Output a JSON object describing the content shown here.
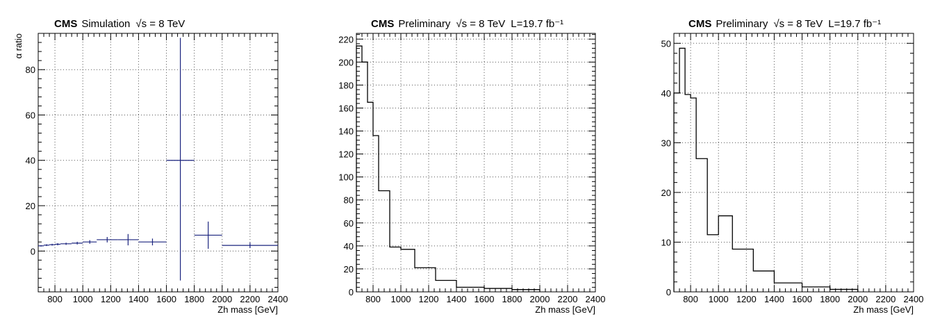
{
  "chart_data": [
    {
      "type": "line",
      "style": "points-with-error-bars",
      "title_label": "CMS",
      "title_text": "Simulation",
      "title_energy": "√s = 8 TeV",
      "title_lumi": "",
      "xlabel": "Zh mass [GeV]",
      "ylabel": "α ratio",
      "xlim": [
        680,
        2400
      ],
      "ylim": [
        -18,
        96
      ],
      "xticks": [
        800,
        1000,
        1200,
        1400,
        1600,
        1800,
        2000,
        2200,
        2400
      ],
      "yticks": [
        0,
        20,
        40,
        60,
        80
      ],
      "grid": true,
      "color": "#1a237e",
      "points": [
        {
          "xlo": 680,
          "xhi": 720,
          "y": 2.3,
          "ylo": 2.0,
          "yhi": 2.6
        },
        {
          "xlo": 720,
          "xhi": 760,
          "y": 2.6,
          "ylo": 2.2,
          "yhi": 3.0
        },
        {
          "xlo": 760,
          "xhi": 800,
          "y": 2.8,
          "ylo": 2.4,
          "yhi": 3.2
        },
        {
          "xlo": 800,
          "xhi": 840,
          "y": 3.0,
          "ylo": 2.5,
          "yhi": 3.5
        },
        {
          "xlo": 840,
          "xhi": 920,
          "y": 3.2,
          "ylo": 2.7,
          "yhi": 3.7
        },
        {
          "xlo": 920,
          "xhi": 1000,
          "y": 3.5,
          "ylo": 2.9,
          "yhi": 4.1
        },
        {
          "xlo": 1000,
          "xhi": 1100,
          "y": 4.0,
          "ylo": 3.2,
          "yhi": 4.8
        },
        {
          "xlo": 1100,
          "xhi": 1250,
          "y": 5.0,
          "ylo": 3.8,
          "yhi": 6.2
        },
        {
          "xlo": 1250,
          "xhi": 1400,
          "y": 5.0,
          "ylo": 2.5,
          "yhi": 7.5
        },
        {
          "xlo": 1400,
          "xhi": 1600,
          "y": 4.0,
          "ylo": 2.5,
          "yhi": 5.5
        },
        {
          "xlo": 1600,
          "xhi": 1800,
          "y": 40.0,
          "ylo": -13.0,
          "yhi": 94.0
        },
        {
          "xlo": 1800,
          "xhi": 2000,
          "y": 7.0,
          "ylo": 1.0,
          "yhi": 13.0
        },
        {
          "xlo": 2000,
          "xhi": 2400,
          "y": 2.5,
          "ylo": 1.3,
          "yhi": 3.7
        }
      ]
    },
    {
      "type": "bar",
      "style": "step-histogram",
      "title_label": "CMS",
      "title_text": "Preliminary",
      "title_energy": "√s = 8 TeV",
      "title_lumi": "L=19.7 fb⁻¹",
      "xlabel": "Zh mass [GeV]",
      "ylabel": "",
      "xlim": [
        680,
        2400
      ],
      "ylim": [
        0,
        225
      ],
      "xticks": [
        800,
        1000,
        1200,
        1400,
        1600,
        1800,
        2000,
        2200,
        2400
      ],
      "yticks": [
        0,
        20,
        40,
        60,
        80,
        100,
        120,
        140,
        160,
        180,
        200,
        220
      ],
      "grid": true,
      "color": "#000000",
      "edges": [
        680,
        720,
        760,
        800,
        840,
        920,
        1000,
        1100,
        1250,
        1400,
        1600,
        1800,
        2000
      ],
      "values": [
        214,
        200,
        165,
        136,
        88,
        39,
        37,
        21,
        10,
        4,
        3,
        2
      ]
    },
    {
      "type": "bar",
      "style": "step-histogram",
      "title_label": "CMS",
      "title_text": "Preliminary",
      "title_energy": "√s = 8 TeV",
      "title_lumi": "L=19.7 fb⁻¹",
      "xlabel": "Zh mass [GeV]",
      "ylabel": "",
      "xlim": [
        680,
        2400
      ],
      "ylim": [
        0,
        52
      ],
      "xticks": [
        800,
        1000,
        1200,
        1400,
        1600,
        1800,
        2000,
        2200,
        2400
      ],
      "yticks": [
        0,
        10,
        20,
        30,
        40,
        50
      ],
      "grid": true,
      "color": "#000000",
      "edges": [
        680,
        720,
        760,
        800,
        840,
        920,
        1000,
        1100,
        1250,
        1400,
        1600,
        1800,
        2000
      ],
      "values": [
        40,
        49,
        39.7,
        39,
        26.8,
        11.5,
        15.3,
        8.6,
        4.2,
        1.8,
        1.0,
        0.5
      ]
    }
  ]
}
